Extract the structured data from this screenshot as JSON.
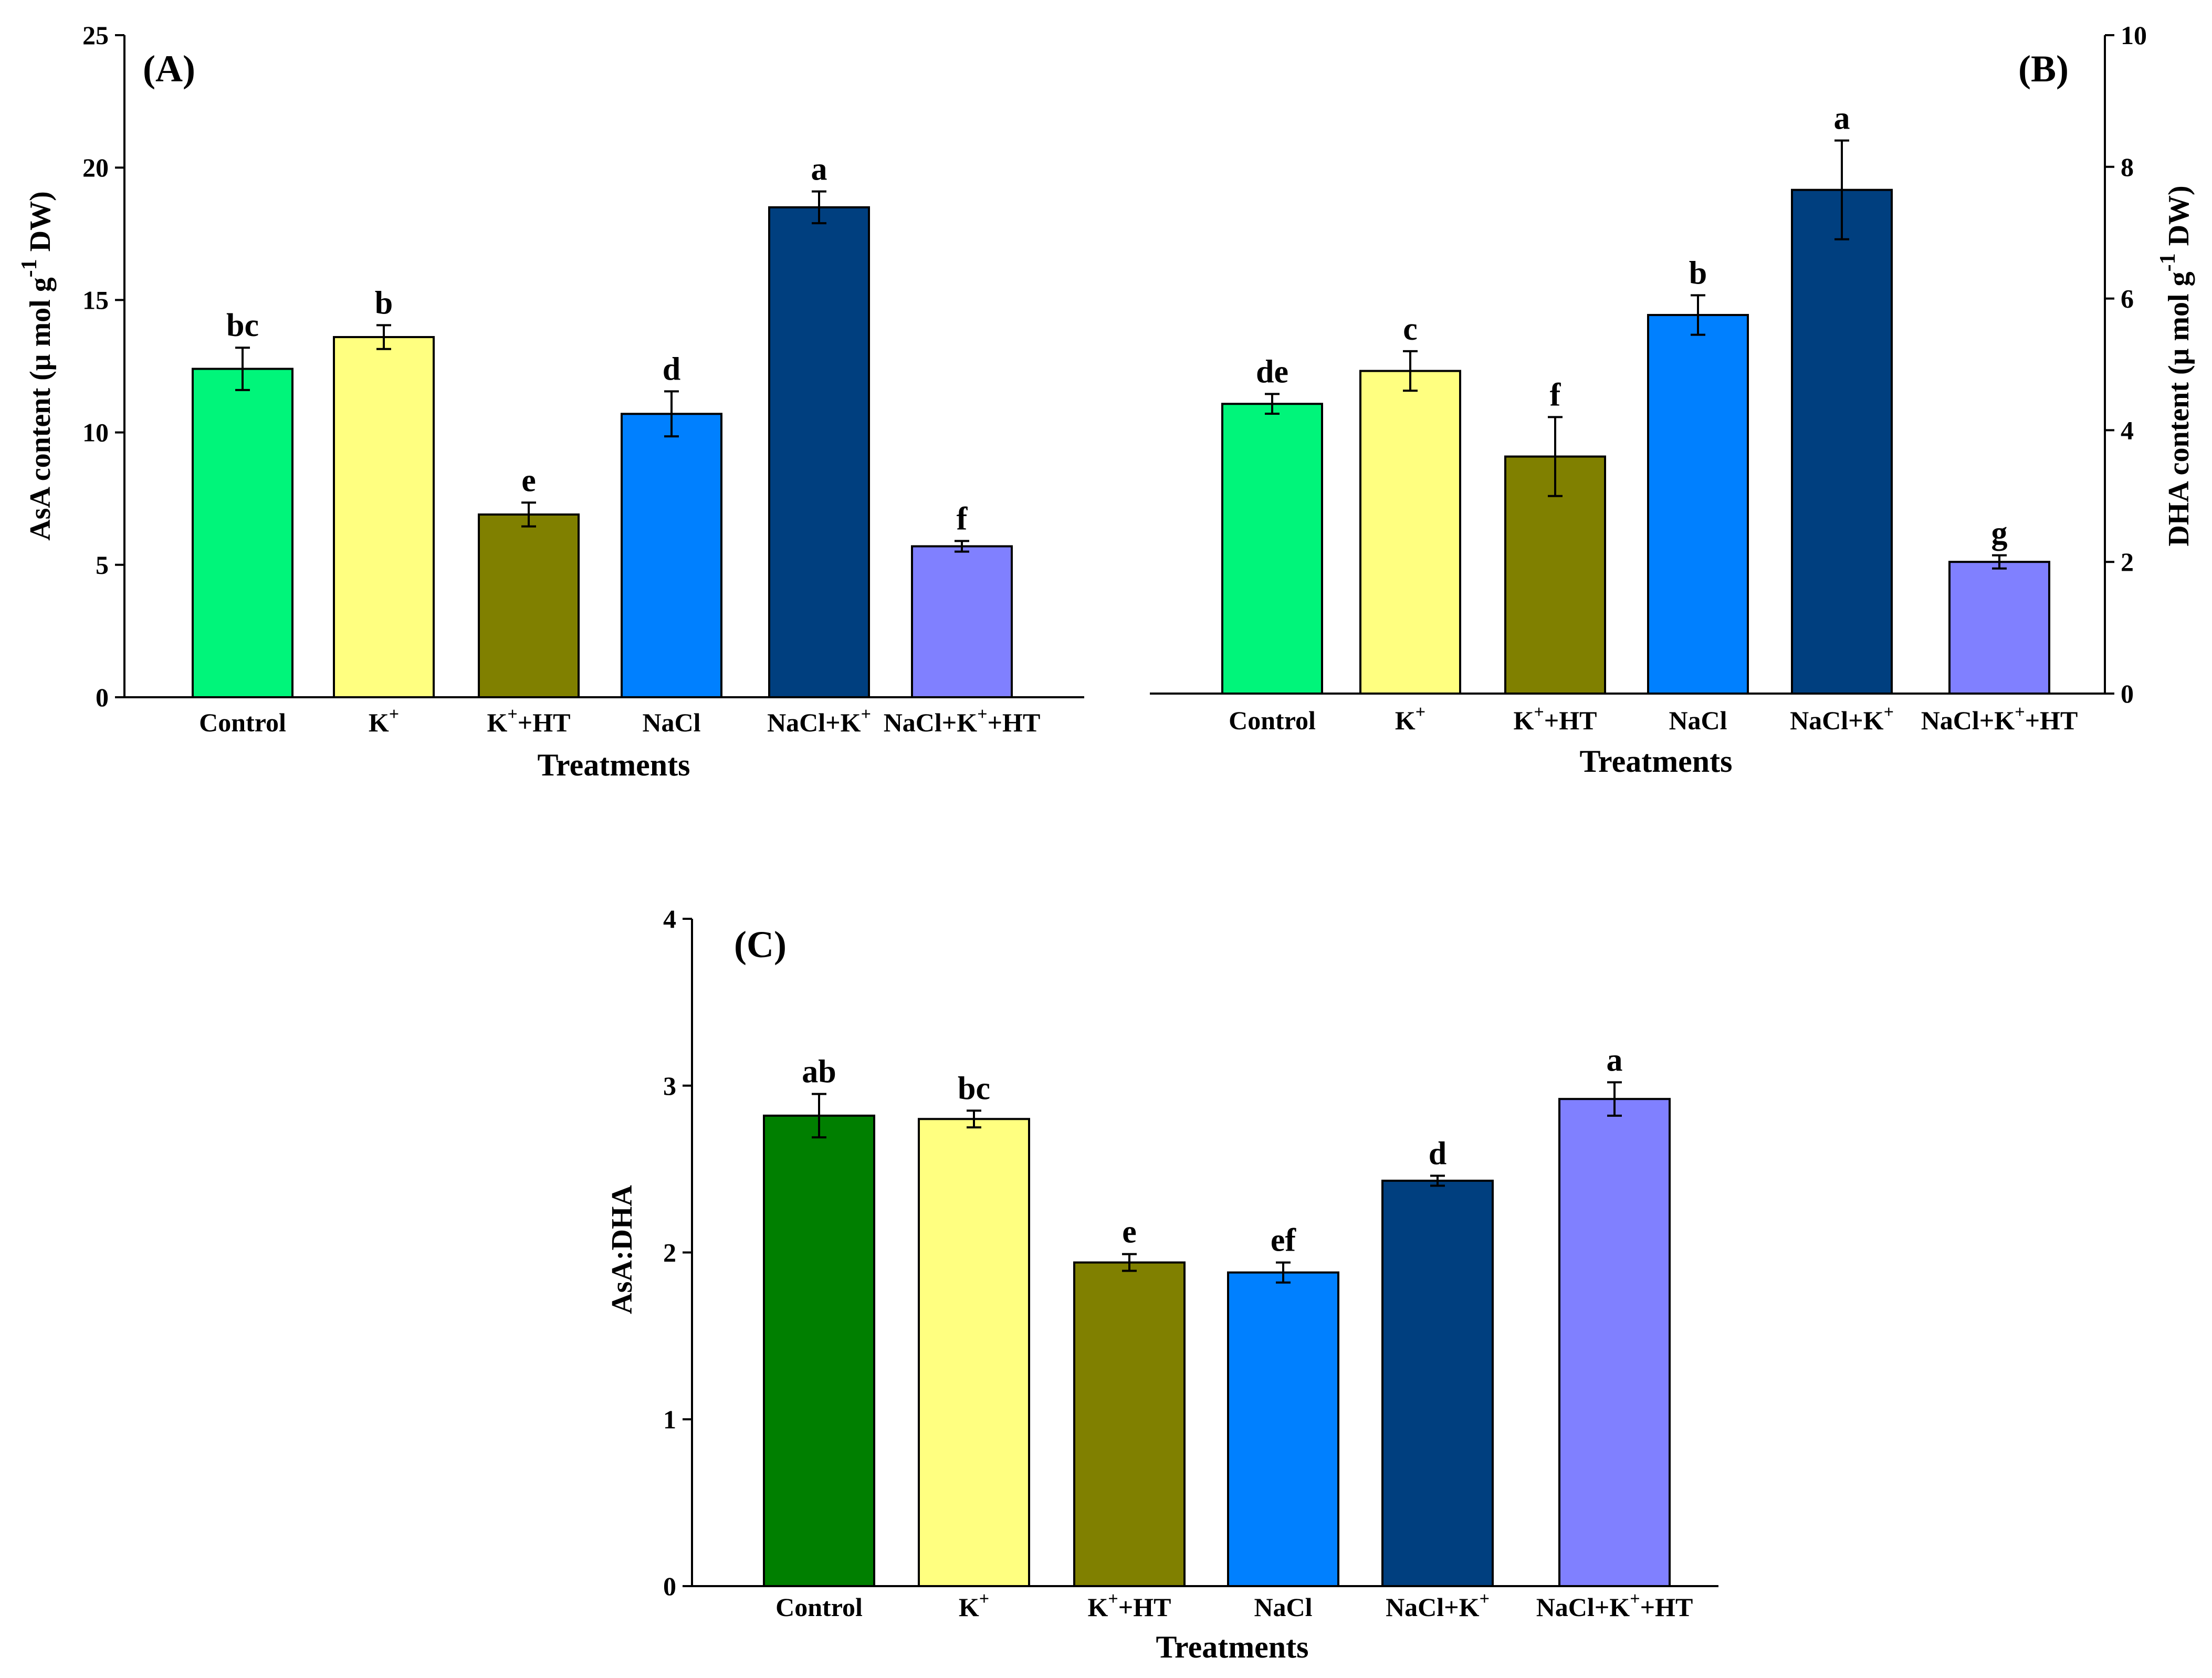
{
  "chart_data": [
    {
      "id": "A",
      "type": "bar",
      "panel_label": "(A)",
      "xlabel": "Treatments",
      "ylabel": "AsA content (μ mol g",
      "ylabel_sup": "-1",
      "ylabel_tail": " DW)",
      "ylim": [
        0,
        25
      ],
      "yticks": [
        0,
        5,
        10,
        15,
        20,
        25
      ],
      "categories": [
        {
          "base": "Control",
          "sup": "",
          "tail": ""
        },
        {
          "base": "K",
          "sup": "+",
          "tail": ""
        },
        {
          "base": "K",
          "sup": "+",
          "tail": "+HT"
        },
        {
          "base": "NaCl",
          "sup": "",
          "tail": ""
        },
        {
          "base": "NaCl+K",
          "sup": "+",
          "tail": ""
        },
        {
          "base": "NaCl+K",
          "sup": "+",
          "tail": "+HT"
        }
      ],
      "values": [
        12.4,
        13.6,
        6.9,
        10.7,
        18.5,
        5.7
      ],
      "errors": [
        0.8,
        0.45,
        0.45,
        0.85,
        0.6,
        0.2
      ],
      "letters": [
        "bc",
        "b",
        "e",
        "d",
        "a",
        "f"
      ],
      "colors": [
        "#00F57A",
        "#FFFF80",
        "#808000",
        "#0080FF",
        "#003F7F",
        "#8080FF"
      ]
    },
    {
      "id": "B",
      "type": "bar",
      "panel_label": "(B)",
      "xlabel": "Treatments",
      "ylabel": "DHA content (μ mol g",
      "ylabel_sup": "-1",
      "ylabel_tail": " DW)",
      "ylim": [
        0,
        10
      ],
      "yticks": [
        0,
        2,
        4,
        6,
        8,
        10
      ],
      "categories": [
        {
          "base": "Control",
          "sup": "",
          "tail": ""
        },
        {
          "base": "K",
          "sup": "+",
          "tail": ""
        },
        {
          "base": "K",
          "sup": "+",
          "tail": "+HT"
        },
        {
          "base": "NaCl",
          "sup": "",
          "tail": ""
        },
        {
          "base": "NaCl+K",
          "sup": "+",
          "tail": ""
        },
        {
          "base": "NaCl+K",
          "sup": "+",
          "tail": "+HT"
        }
      ],
      "values": [
        4.4,
        4.9,
        3.6,
        5.75,
        7.65,
        2.0
      ],
      "errors": [
        0.15,
        0.3,
        0.6,
        0.3,
        0.75,
        0.1
      ],
      "letters": [
        "de",
        "c",
        "f",
        "b",
        "a",
        "g"
      ],
      "colors": [
        "#00F57A",
        "#FFFF80",
        "#808000",
        "#0080FF",
        "#003F7F",
        "#8080FF"
      ]
    },
    {
      "id": "C",
      "type": "bar",
      "panel_label": "(C)",
      "xlabel": "Treatments",
      "ylabel": "AsA:DHA",
      "ylabel_sup": "",
      "ylabel_tail": "",
      "ylim": [
        0,
        4
      ],
      "yticks": [
        0,
        1,
        2,
        3,
        4
      ],
      "categories": [
        {
          "base": "Control",
          "sup": "",
          "tail": ""
        },
        {
          "base": "K",
          "sup": "+",
          "tail": ""
        },
        {
          "base": "K",
          "sup": "+",
          "tail": "+HT"
        },
        {
          "base": "NaCl",
          "sup": "",
          "tail": ""
        },
        {
          "base": "NaCl+K",
          "sup": "+",
          "tail": ""
        },
        {
          "base": "NaCl+K",
          "sup": "+",
          "tail": "+HT"
        }
      ],
      "values": [
        2.82,
        2.8,
        1.94,
        1.88,
        2.43,
        2.92
      ],
      "errors": [
        0.13,
        0.05,
        0.05,
        0.06,
        0.03,
        0.1
      ],
      "letters": [
        "ab",
        "bc",
        "e",
        "ef",
        "d",
        "a"
      ],
      "colors": [
        "#007F00",
        "#FFFF80",
        "#808000",
        "#0080FF",
        "#003F7F",
        "#8080FF"
      ]
    }
  ]
}
